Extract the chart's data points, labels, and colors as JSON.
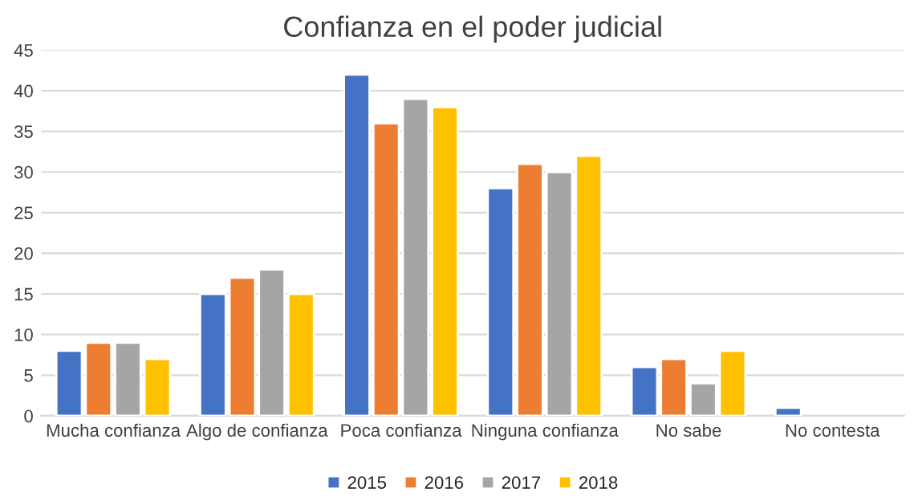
{
  "chart_data": {
    "type": "bar",
    "title": "Confianza en el poder judicial",
    "categories": [
      "Mucha confianza",
      "Algo de confianza",
      "Poca confianza",
      "Ninguna confianza",
      "No sabe",
      "No contesta"
    ],
    "series": [
      {
        "name": "2015",
        "color": "#4472c4",
        "values": [
          8,
          15,
          42,
          28,
          6,
          1
        ]
      },
      {
        "name": "2016",
        "color": "#ed7d31",
        "values": [
          9,
          17,
          36,
          31,
          7,
          null
        ]
      },
      {
        "name": "2017",
        "color": "#a5a5a5",
        "values": [
          9,
          18,
          39,
          30,
          4,
          null
        ]
      },
      {
        "name": "2018",
        "color": "#ffc000",
        "values": [
          7,
          15,
          38,
          32,
          8,
          null
        ]
      }
    ],
    "ylim": [
      0,
      45
    ],
    "yticks": [
      0,
      5,
      10,
      15,
      20,
      25,
      30,
      35,
      40,
      45
    ],
    "grid": "y",
    "legend": "bottom"
  }
}
